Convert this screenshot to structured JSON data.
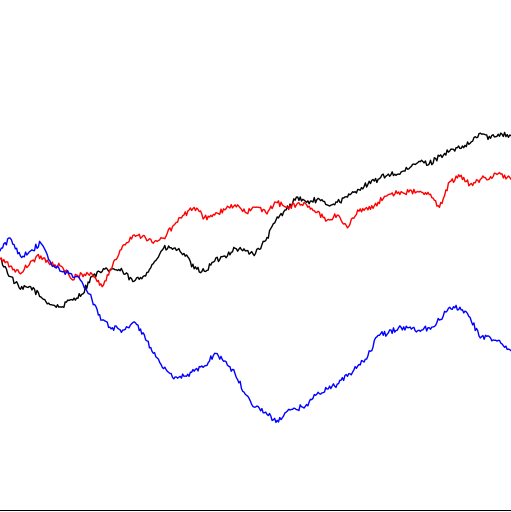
{
  "chart_data": {
    "type": "line",
    "title": "",
    "xlabel": "",
    "ylabel": "",
    "xlim": [
      0,
      1
    ],
    "ylim": [
      -1,
      1
    ],
    "grid": false,
    "legend": "none",
    "x": [
      0,
      0.02,
      0.04,
      0.06,
      0.08,
      0.1,
      0.12,
      0.14,
      0.16,
      0.18,
      0.2,
      0.22,
      0.24,
      0.26,
      0.28,
      0.3,
      0.32,
      0.34,
      0.36,
      0.38,
      0.4,
      0.42,
      0.44,
      0.46,
      0.48,
      0.5,
      0.52,
      0.54,
      0.56,
      0.58,
      0.6,
      0.62,
      0.64,
      0.66,
      0.68,
      0.7,
      0.72,
      0.74,
      0.76,
      0.78,
      0.8,
      0.82,
      0.84,
      0.86,
      0.88,
      0.9,
      0.92,
      0.94,
      0.96,
      0.98,
      1.0
    ],
    "series": [
      {
        "color": "#000000",
        "values": [
          -0.01,
          -0.08,
          -0.13,
          -0.12,
          -0.16,
          -0.19,
          -0.2,
          -0.17,
          -0.15,
          -0.08,
          -0.06,
          -0.05,
          -0.06,
          -0.1,
          -0.08,
          -0.03,
          0.03,
          0.03,
          0.01,
          -0.05,
          -0.06,
          -0.02,
          0.0,
          0.03,
          0.02,
          0.01,
          0.06,
          0.14,
          0.18,
          0.23,
          0.21,
          0.22,
          0.2,
          0.21,
          0.23,
          0.26,
          0.28,
          0.3,
          0.32,
          0.32,
          0.34,
          0.37,
          0.36,
          0.39,
          0.41,
          0.42,
          0.44,
          0.48,
          0.46,
          0.48,
          0.47
        ]
      },
      {
        "color": "#ff0000",
        "values": [
          -0.01,
          -0.04,
          -0.07,
          -0.02,
          0.0,
          -0.03,
          -0.04,
          -0.09,
          -0.07,
          -0.07,
          -0.12,
          -0.04,
          0.04,
          0.08,
          0.08,
          0.05,
          0.07,
          0.12,
          0.16,
          0.19,
          0.15,
          0.16,
          0.18,
          0.2,
          0.17,
          0.19,
          0.17,
          0.21,
          0.19,
          0.2,
          0.2,
          0.17,
          0.14,
          0.16,
          0.11,
          0.18,
          0.18,
          0.21,
          0.24,
          0.25,
          0.25,
          0.25,
          0.24,
          0.19,
          0.29,
          0.31,
          0.28,
          0.3,
          0.31,
          0.32,
          0.3
        ]
      },
      {
        "color": "#0000ff",
        "values": [
          0.02,
          0.07,
          0.0,
          0.02,
          0.05,
          -0.03,
          -0.06,
          -0.07,
          -0.1,
          -0.17,
          -0.25,
          -0.28,
          -0.29,
          -0.26,
          -0.3,
          -0.38,
          -0.44,
          -0.48,
          -0.47,
          -0.45,
          -0.43,
          -0.38,
          -0.41,
          -0.46,
          -0.54,
          -0.59,
          -0.61,
          -0.65,
          -0.61,
          -0.6,
          -0.58,
          -0.54,
          -0.52,
          -0.5,
          -0.47,
          -0.43,
          -0.39,
          -0.31,
          -0.3,
          -0.28,
          -0.28,
          -0.29,
          -0.28,
          -0.25,
          -0.2,
          -0.2,
          -0.24,
          -0.32,
          -0.32,
          -0.34,
          -0.37
        ]
      }
    ]
  }
}
